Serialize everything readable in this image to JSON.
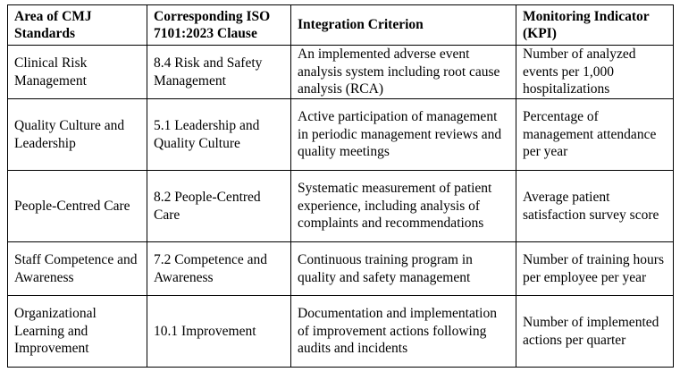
{
  "table": {
    "header": [
      "Area of CMJ Standards",
      "Corresponding ISO 7101:2023 Clause",
      "Integration Criterion",
      "Monitoring Indicator (KPI)"
    ],
    "rows": [
      [
        "Clinical Risk Management",
        "8.4 Risk and Safety Management",
        "An implemented adverse event analysis system including root cause analysis (RCA)",
        "Number of analyzed events per 1,000 hospitalizations"
      ],
      [
        "Quality Culture and Leadership",
        "5.1 Leadership and Quality Culture",
        "Active participation of management in periodic management reviews and quality meetings",
        "Percentage of management attendance per year"
      ],
      [
        "People-Centred Care",
        "8.2 People-Centred Care",
        "Systematic measurement of patient experience, including analysis of complaints and recommendations",
        "Average patient satisfaction survey score"
      ],
      [
        "Staff Competence and Awareness",
        "7.2 Competence and Awareness",
        "Continuous training program in quality and safety management",
        "Number of training hours per employee per year"
      ],
      [
        "Organizational Learning and Improvement",
        "10.1 Improvement",
        "Documentation and implementation of improvement actions following audits and incidents",
        "Number of implemented actions per quarter"
      ]
    ]
  }
}
